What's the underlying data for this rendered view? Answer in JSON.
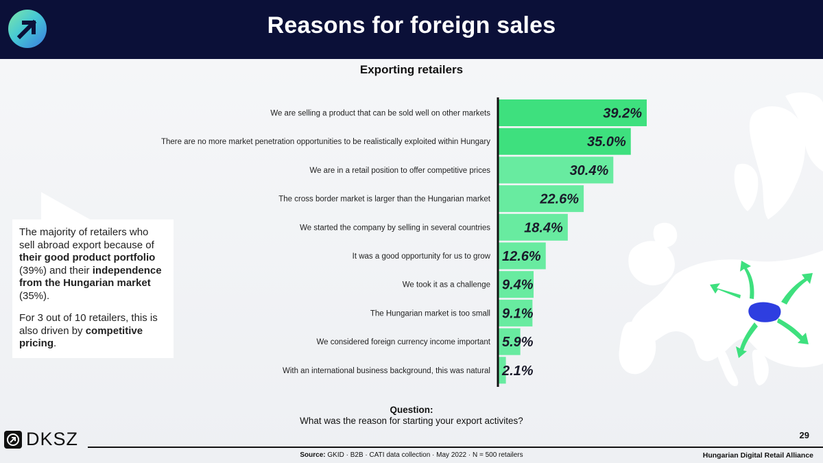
{
  "header": {
    "title": "Reasons for foreign sales"
  },
  "chart_data": {
    "type": "bar",
    "orientation": "horizontal",
    "title": "Exporting retailers",
    "xlim": [
      0,
      45
    ],
    "categories": [
      "We are selling a product that can be sold well on other markets",
      "There are no more market penetration opportunities to be realistically exploited within Hungary",
      "We are in a retail position to offer competitive prices",
      "The cross border market is larger than the Hungarian market",
      "We started the company by selling in several countries",
      "It was a good opportunity for us to grow",
      "We took it as a challenge",
      "The Hungarian market is too small",
      "We considered foreign currency income important",
      "With an international business background, this was natural"
    ],
    "values": [
      39.2,
      35.0,
      30.4,
      22.6,
      18.4,
      12.6,
      9.4,
      9.1,
      5.9,
      2.1
    ],
    "value_labels": [
      "39.2%",
      "35.0%",
      "30.4%",
      "22.6%",
      "18.4%",
      "12.6%",
      "9.4%",
      "9.1%",
      "5.9%",
      "2.1%"
    ],
    "colors": [
      "#3ee07e",
      "#3ee07e",
      "#68eba0",
      "#68eba0",
      "#68eba0",
      "#68eba0",
      "#68eba0",
      "#68eba0",
      "#68eba0",
      "#68eba0"
    ]
  },
  "callout": {
    "p1_a": "The majority of retailers who sell abroad export because of ",
    "p1_b": "their good product portfolio",
    "p1_c": " (39%) and their ",
    "p1_d": "independence from the Hungarian market",
    "p1_e": " (35%).",
    "p2_a": "For 3 out of 10 retailers, this is also driven by ",
    "p2_b": "competitive pricing",
    "p2_c": "."
  },
  "question": {
    "label": "Question:",
    "text": "What was the reason for starting your export activites?"
  },
  "footer": {
    "page_number": "29",
    "brand": "DKSZ",
    "source_label": "Source:",
    "source_text": " GKID · B2B · CATI data collection · May 2022 · N = 500 retailers",
    "org": "Hungarian Digital Retail Alliance"
  },
  "colors": {
    "header_bg": "#0b1038",
    "bar_top": "#3ee07e",
    "bar": "#68eba0",
    "hungary": "#2e3ee0",
    "arrows": "#3ee07e"
  }
}
